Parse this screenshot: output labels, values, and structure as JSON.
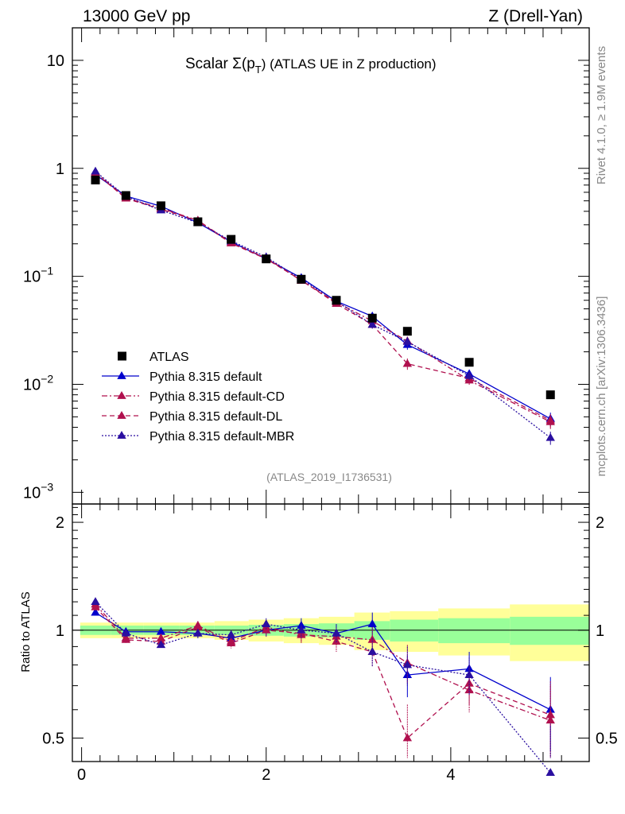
{
  "chart_data": {
    "type": "line",
    "header_left": "13000 GeV pp",
    "header_right": "Z (Drell-Yan)",
    "title_prefix": "Scalar Σ(p",
    "title_sub": "T",
    "title_suffix": ") (ATLAS UE in Z production)",
    "side_label_top": "Rivet 4.1.0, ≥ 1.9M events",
    "side_label_bottom": "mcplots.cern.ch [arXiv:1306.3436]",
    "watermark": "(ATLAS_2019_I1736531)",
    "ratio_ylabel": "Ratio to ATLAS",
    "x_ticks": [
      "0",
      "2",
      "4"
    ],
    "main_y_ticks": [
      {
        "value": 10,
        "base": "10",
        "exp": ""
      },
      {
        "value": 1,
        "base": "1",
        "exp": ""
      },
      {
        "value": 0.1,
        "base": "10",
        "exp": "−1"
      },
      {
        "value": 0.01,
        "base": "10",
        "exp": "−2"
      },
      {
        "value": 0.001,
        "base": "10",
        "exp": "−3"
      }
    ],
    "ratio_y_ticks": [
      "2",
      "1",
      "0.5"
    ],
    "ratio_y_tick_values": [
      2,
      1,
      0.5
    ],
    "xlim": [
      -0.1,
      5.5
    ],
    "main_ylim": [
      0.00078,
      20
    ],
    "ratio_ylim": [
      0.43,
      2.25
    ],
    "x": [
      0.15,
      0.48,
      0.86,
      1.26,
      1.62,
      2.0,
      2.38,
      2.76,
      3.15,
      3.53,
      4.2,
      5.08
    ],
    "data": {
      "name": "ATLAS",
      "values": [
        0.78,
        0.56,
        0.45,
        0.32,
        0.22,
        0.145,
        0.094,
        0.06,
        0.041,
        0.031,
        0.016,
        0.008
      ],
      "band_inner": [
        0.03,
        0.03,
        0.03,
        0.03,
        0.03,
        0.035,
        0.04,
        0.045,
        0.06,
        0.07,
        0.08,
        0.09
      ],
      "band_outer": [
        0.05,
        0.05,
        0.05,
        0.05,
        0.06,
        0.07,
        0.08,
        0.09,
        0.12,
        0.13,
        0.15,
        0.18
      ]
    },
    "series": [
      {
        "name": "Pythia 8.315 default",
        "color": "#0000cc",
        "dash": "",
        "ratio": [
          1.12,
          0.99,
          0.99,
          0.98,
          0.95,
          1.0,
          1.03,
          0.98,
          1.04,
          0.75,
          0.78,
          0.6
        ],
        "ratio_err": [
          0.02,
          0.02,
          0.02,
          0.03,
          0.03,
          0.04,
          0.05,
          0.06,
          0.08,
          0.1,
          0.09,
          0.14
        ]
      },
      {
        "name": "Pythia 8.315 default-CD",
        "color": "#b0104e",
        "dash": "7,3,2,3",
        "ratio": [
          1.18,
          0.95,
          0.95,
          1.03,
          0.93,
          1.02,
          0.97,
          0.96,
          0.94,
          0.81,
          0.68,
          0.56
        ],
        "ratio_err": [
          0.02,
          0.02,
          0.02,
          0.03,
          0.03,
          0.04,
          0.05,
          0.06,
          0.08,
          0.1,
          0.09,
          0.14
        ]
      },
      {
        "name": "Pythia 8.315 default-DL",
        "color": "#b0104e",
        "dash": "6,4",
        "ratio": [
          1.16,
          0.94,
          0.93,
          1.02,
          0.92,
          1.0,
          0.98,
          0.93,
          0.87,
          0.5,
          0.71,
          0.58
        ],
        "ratio_err": [
          0.02,
          0.02,
          0.02,
          0.03,
          0.03,
          0.04,
          0.05,
          0.06,
          0.08,
          0.12,
          0.09,
          0.14
        ]
      },
      {
        "name": "Pythia 8.315 default-MBR",
        "color": "#2a0fa0",
        "dash": "2,2",
        "ratio": [
          1.2,
          0.98,
          0.91,
          0.98,
          0.97,
          1.04,
          1.0,
          0.98,
          0.87,
          0.8,
          0.75,
          0.4
        ],
        "ratio_err": [
          0.02,
          0.02,
          0.02,
          0.03,
          0.03,
          0.04,
          0.05,
          0.06,
          0.08,
          0.1,
          0.09,
          0.14
        ]
      }
    ]
  }
}
